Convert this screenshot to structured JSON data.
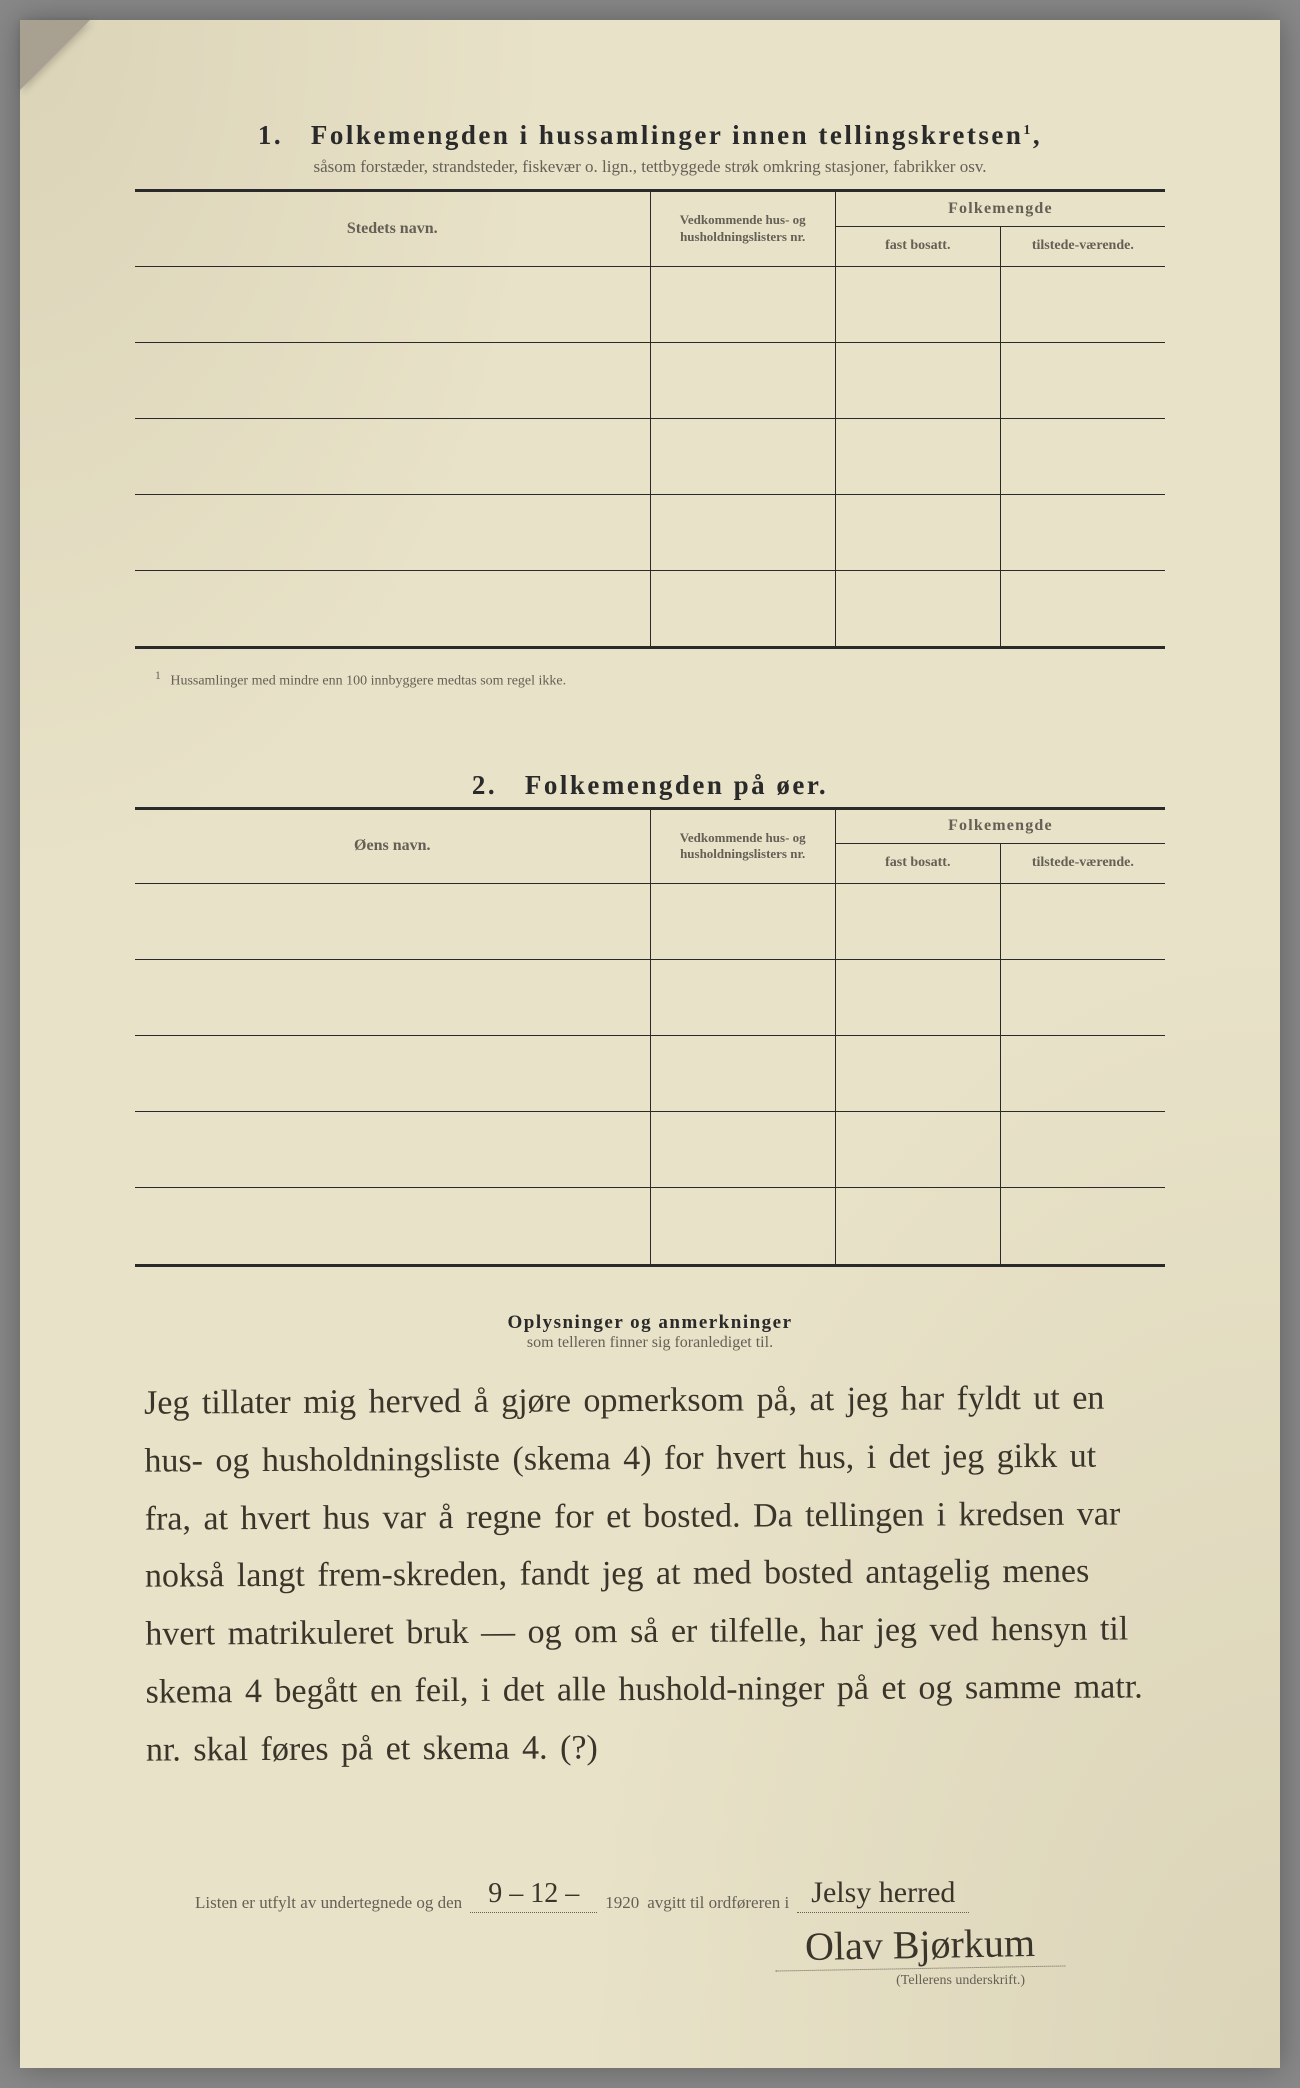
{
  "section1": {
    "number": "1.",
    "title": "Folkemengden i hussamlinger innen tellingskretsen",
    "sup": "1",
    "subtitle": "såsom forstæder, strandsteder, fiskevær o. lign., tettbyggede strøk omkring stasjoner, fabrikker osv.",
    "columns": {
      "name": "Stedets navn.",
      "nr": "Vedkommende hus- og husholdningslisters nr.",
      "folk": "Folkemengde",
      "fast": "fast bosatt.",
      "tilstede": "tilstede-værende."
    },
    "rows": [
      "",
      "",
      "",
      "",
      ""
    ],
    "footnote_mark": "1",
    "footnote": "Hussamlinger med mindre enn 100 innbyggere medtas som regel ikke."
  },
  "section2": {
    "number": "2.",
    "title": "Folkemengden på øer.",
    "columns": {
      "name": "Øens navn.",
      "nr": "Vedkommende hus- og husholdningslisters nr.",
      "folk": "Folkemengde",
      "fast": "fast bosatt.",
      "tilstede": "tilstede-værende."
    },
    "rows": [
      "",
      "",
      "",
      "",
      ""
    ]
  },
  "remarks": {
    "title": "Oplysninger og anmerkninger",
    "subtitle": "som telleren finner sig foranlediget til.",
    "handwritten": "Jeg tillater mig herved å gjøre opmerksom på, at jeg har fyldt ut en hus- og husholdningsliste (skema 4) for hvert hus, i det jeg gikk ut fra, at hvert hus var å regne for et bosted. Da tellingen i kredsen var nokså langt frem-skreden, fandt jeg at med bosted antagelig menes hvert matrikuleret bruk — og om så er tilfelle, har jeg ved hensyn til skema 4 begått en feil, i det alle hushold-ninger på et og samme matr. nr. skal føres på et skema 4. (?)"
  },
  "footer": {
    "pre": "Listen er utfylt av undertegnede og den",
    "date": "9 – 12 –",
    "year": "1920",
    "mid": "avgitt til ordføreren i",
    "place": "Jelsy herred",
    "signature": "Olav Bjørkum",
    "caption": "(Tellerens underskrift.)"
  },
  "style": {
    "paper_bg": "#e8e2c8",
    "ink": "#2a2a2a",
    "faded_ink": "#656055",
    "hand_ink": "#3a352a"
  }
}
